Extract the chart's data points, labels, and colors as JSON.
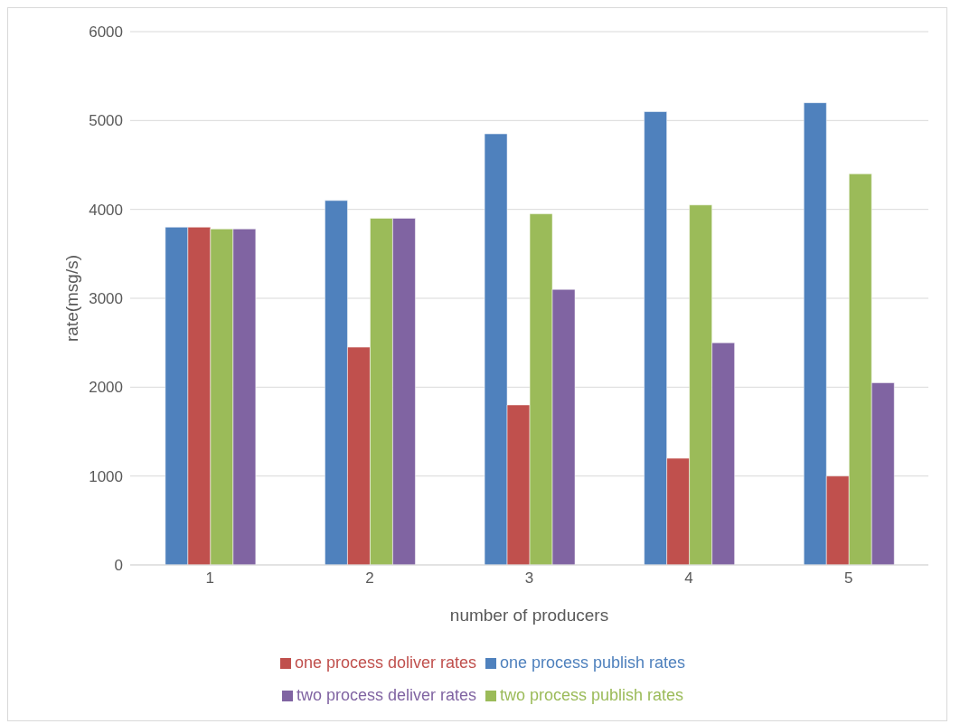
{
  "chart_data": {
    "type": "bar",
    "xlabel": "number of producers",
    "ylabel": "rate(msg/s)",
    "categories": [
      "1",
      "2",
      "3",
      "4",
      "5"
    ],
    "series": [
      {
        "name": "one process publish rates",
        "color": "#4f81bd",
        "values": [
          3800,
          4100,
          4850,
          5100,
          5200
        ]
      },
      {
        "name": "one process doliver rates",
        "color": "#c0504d",
        "values": [
          3800,
          2450,
          1800,
          1200,
          1000
        ]
      },
      {
        "name": "two process publish rates",
        "color": "#9bbb59",
        "values": [
          3780,
          3900,
          3950,
          4050,
          4400
        ]
      },
      {
        "name": "two process deliver rates",
        "color": "#8064a2",
        "values": [
          3780,
          3900,
          3100,
          2500,
          2050
        ]
      }
    ],
    "ylim": [
      0,
      6000
    ],
    "yticks": [
      0,
      1000,
      2000,
      3000,
      4000,
      5000,
      6000
    ],
    "grid": "y",
    "legend": "bottom"
  }
}
